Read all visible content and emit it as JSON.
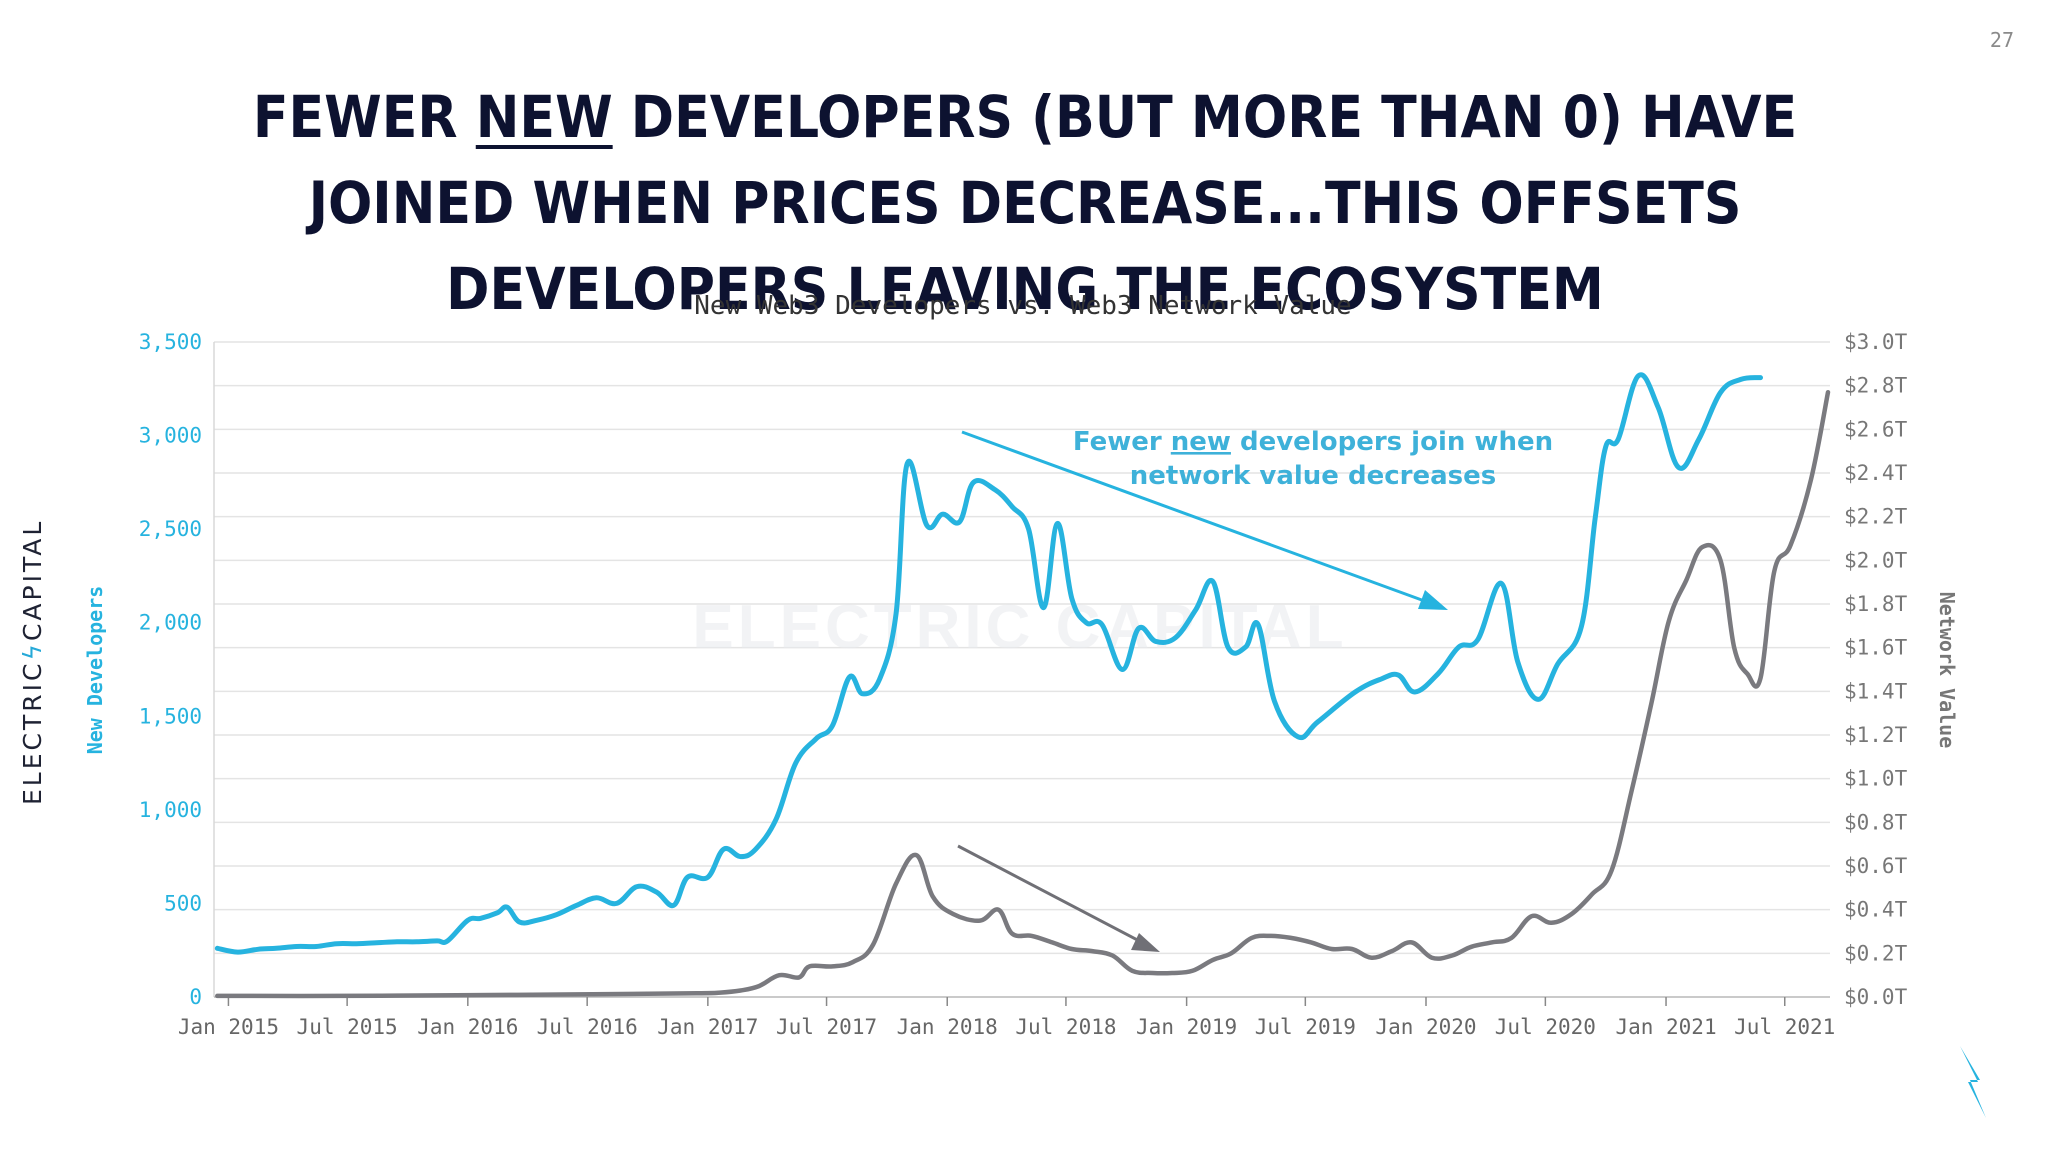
{
  "page_number": "27",
  "brand_label": "ELECTRIC",
  "brand_label_2": "CAPITAL",
  "watermark": "ELECTRIC CAPITAL",
  "title_parts": {
    "before": "Fewer ",
    "underlined": "new",
    "after": " developers (but more than 0) have joined when prices decrease...this offsets developers leaving the ecosystem"
  },
  "colors": {
    "developers": "#26b3df",
    "network_value": "#7a7a7f",
    "annotation_text": "#3eb1d9",
    "arrow_blue": "#26b3df",
    "arrow_gray": "#707076",
    "grid": "#e4e4e4",
    "title": "#0d1230"
  },
  "annotation": {
    "line1_before": "Fewer ",
    "line1_underlined": "new",
    "line1_after": " developers join when",
    "line2": "network value decreases"
  },
  "chart_data": {
    "type": "line",
    "title": "New Web3 Developers vs. Web3 Network Value",
    "ylabel": "New Developers",
    "y2label": "Network Value",
    "ylim": [
      0,
      3500
    ],
    "y2lim": [
      0,
      3.0
    ],
    "grid": true,
    "y_ticks": [
      "0",
      "500",
      "1,000",
      "1,500",
      "2,000",
      "2,500",
      "3,000",
      "3,500"
    ],
    "y2_ticks": [
      "$0.0T",
      "$0.2T",
      "$0.4T",
      "$0.6T",
      "$0.8T",
      "$1.0T",
      "$1.2T",
      "$1.4T",
      "$1.6T",
      "$1.8T",
      "$2.0T",
      "$2.2T",
      "$2.4T",
      "$2.6T",
      "$2.8T",
      "$3.0T"
    ],
    "x_ticks": [
      "Jan 2015",
      "Jul 2015",
      "Jan 2016",
      "Jul 2016",
      "Jan 2017",
      "Jul 2017",
      "Jan 2018",
      "Jul 2018",
      "Jan 2019",
      "Jul 2019",
      "Jan 2020",
      "Jul 2020",
      "Jan 2021",
      "Jul 2021"
    ],
    "x_tick_dates": [
      "2015-01",
      "2015-07",
      "2016-01",
      "2016-07",
      "2017-01",
      "2017-07",
      "2018-01",
      "2018-07",
      "2019-01",
      "2019-07",
      "2020-01",
      "2020-07",
      "2021-01",
      "2021-07"
    ],
    "series": [
      {
        "name": "New Developers",
        "axis": "left",
        "points": [
          [
            "2014-12-15",
            260
          ],
          [
            "2015-01-15",
            240
          ],
          [
            "2015-02-15",
            255
          ],
          [
            "2015-03-15",
            260
          ],
          [
            "2015-04-15",
            270
          ],
          [
            "2015-05-15",
            270
          ],
          [
            "2015-06-15",
            285
          ],
          [
            "2015-07-15",
            285
          ],
          [
            "2015-08-15",
            290
          ],
          [
            "2015-09-15",
            295
          ],
          [
            "2015-10-15",
            295
          ],
          [
            "2015-11-15",
            300
          ],
          [
            "2015-12-01",
            300
          ],
          [
            "2016-01-01",
            410
          ],
          [
            "2016-01-20",
            420
          ],
          [
            "2016-02-15",
            450
          ],
          [
            "2016-03-01",
            480
          ],
          [
            "2016-03-20",
            400
          ],
          [
            "2016-04-15",
            410
          ],
          [
            "2016-05-15",
            440
          ],
          [
            "2016-06-15",
            490
          ],
          [
            "2016-07-15",
            530
          ],
          [
            "2016-08-15",
            500
          ],
          [
            "2016-09-15",
            590
          ],
          [
            "2016-10-15",
            560
          ],
          [
            "2016-11-10",
            490
          ],
          [
            "2016-12-01",
            640
          ],
          [
            "2017-01-01",
            640
          ],
          [
            "2017-01-25",
            790
          ],
          [
            "2017-02-20",
            750
          ],
          [
            "2017-03-15",
            790
          ],
          [
            "2017-04-15",
            950
          ],
          [
            "2017-05-15",
            1250
          ],
          [
            "2017-06-15",
            1380
          ],
          [
            "2017-07-10",
            1450
          ],
          [
            "2017-08-05",
            1710
          ],
          [
            "2017-08-25",
            1620
          ],
          [
            "2017-09-20",
            1700
          ],
          [
            "2017-10-15",
            2050
          ],
          [
            "2017-11-01",
            2850
          ],
          [
            "2017-12-01",
            2520
          ],
          [
            "2017-12-25",
            2580
          ],
          [
            "2018-01-20",
            2540
          ],
          [
            "2018-02-10",
            2750
          ],
          [
            "2018-03-15",
            2710
          ],
          [
            "2018-04-10",
            2620
          ],
          [
            "2018-05-05",
            2500
          ],
          [
            "2018-05-28",
            2080
          ],
          [
            "2018-06-18",
            2530
          ],
          [
            "2018-07-10",
            2130
          ],
          [
            "2018-08-01",
            2000
          ],
          [
            "2018-08-25",
            1990
          ],
          [
            "2018-09-25",
            1750
          ],
          [
            "2018-10-20",
            1970
          ],
          [
            "2018-11-15",
            1900
          ],
          [
            "2018-12-15",
            1920
          ],
          [
            "2019-01-15",
            2070
          ],
          [
            "2019-02-10",
            2220
          ],
          [
            "2019-03-05",
            1870
          ],
          [
            "2019-04-01",
            1870
          ],
          [
            "2019-04-20",
            1990
          ],
          [
            "2019-05-15",
            1580
          ],
          [
            "2019-06-20",
            1390
          ],
          [
            "2019-07-20",
            1470
          ],
          [
            "2019-09-15",
            1630
          ],
          [
            "2019-10-25",
            1700
          ],
          [
            "2019-11-20",
            1720
          ],
          [
            "2019-12-15",
            1630
          ],
          [
            "2020-01-20",
            1730
          ],
          [
            "2020-02-20",
            1870
          ],
          [
            "2020-03-20",
            1910
          ],
          [
            "2020-04-25",
            2210
          ],
          [
            "2020-05-20",
            1790
          ],
          [
            "2020-06-20",
            1590
          ],
          [
            "2020-07-20",
            1780
          ],
          [
            "2020-08-25",
            1980
          ],
          [
            "2020-09-15",
            2560
          ],
          [
            "2020-10-01",
            2940
          ],
          [
            "2020-10-20",
            2980
          ],
          [
            "2020-11-20",
            3320
          ],
          [
            "2020-12-20",
            3150
          ],
          [
            "2021-01-20",
            2830
          ],
          [
            "2021-02-20",
            2980
          ],
          [
            "2021-03-25",
            3230
          ],
          [
            "2021-04-25",
            3300
          ],
          [
            "2021-05-25",
            3310
          ]
        ]
      },
      {
        "name": "Network Value",
        "axis": "right",
        "points": [
          [
            "2014-12-15",
            0.005
          ],
          [
            "2015-06-15",
            0.005
          ],
          [
            "2015-12-15",
            0.008
          ],
          [
            "2016-06-15",
            0.012
          ],
          [
            "2016-12-15",
            0.017
          ],
          [
            "2017-01-20",
            0.02
          ],
          [
            "2017-02-20",
            0.03
          ],
          [
            "2017-03-20",
            0.05
          ],
          [
            "2017-04-20",
            0.1
          ],
          [
            "2017-05-20",
            0.09
          ],
          [
            "2017-06-05",
            0.14
          ],
          [
            "2017-07-10",
            0.14
          ],
          [
            "2017-08-10",
            0.16
          ],
          [
            "2017-09-10",
            0.24
          ],
          [
            "2017-10-15",
            0.52
          ],
          [
            "2017-11-15",
            0.65
          ],
          [
            "2017-12-10",
            0.46
          ],
          [
            "2018-01-10",
            0.38
          ],
          [
            "2018-02-20",
            0.35
          ],
          [
            "2018-03-20",
            0.4
          ],
          [
            "2018-04-10",
            0.29
          ],
          [
            "2018-05-10",
            0.28
          ],
          [
            "2018-06-10",
            0.25
          ],
          [
            "2018-07-10",
            0.22
          ],
          [
            "2018-08-10",
            0.21
          ],
          [
            "2018-09-10",
            0.19
          ],
          [
            "2018-10-10",
            0.12
          ],
          [
            "2018-11-10",
            0.11
          ],
          [
            "2018-12-10",
            0.11
          ],
          [
            "2019-01-10",
            0.12
          ],
          [
            "2019-02-10",
            0.17
          ],
          [
            "2019-03-10",
            0.2
          ],
          [
            "2019-04-10",
            0.27
          ],
          [
            "2019-05-10",
            0.28
          ],
          [
            "2019-06-10",
            0.27
          ],
          [
            "2019-07-10",
            0.25
          ],
          [
            "2019-08-10",
            0.22
          ],
          [
            "2019-09-10",
            0.22
          ],
          [
            "2019-10-10",
            0.18
          ],
          [
            "2019-11-10",
            0.21
          ],
          [
            "2019-12-10",
            0.25
          ],
          [
            "2020-01-10",
            0.18
          ],
          [
            "2020-02-10",
            0.19
          ],
          [
            "2020-03-10",
            0.23
          ],
          [
            "2020-04-10",
            0.25
          ],
          [
            "2020-05-10",
            0.27
          ],
          [
            "2020-06-10",
            0.37
          ],
          [
            "2020-07-10",
            0.34
          ],
          [
            "2020-08-10",
            0.38
          ],
          [
            "2020-09-10",
            0.47
          ],
          [
            "2020-10-10",
            0.58
          ],
          [
            "2020-11-10",
            0.95
          ],
          [
            "2020-12-10",
            1.35
          ],
          [
            "2021-01-05",
            1.72
          ],
          [
            "2021-02-01",
            1.91
          ],
          [
            "2021-02-25",
            2.06
          ],
          [
            "2021-03-25",
            2.0
          ],
          [
            "2021-04-15",
            1.6
          ],
          [
            "2021-05-05",
            1.48
          ],
          [
            "2021-05-25",
            1.46
          ],
          [
            "2021-06-15",
            1.95
          ],
          [
            "2021-07-10",
            2.07
          ],
          [
            "2021-08-10",
            2.37
          ],
          [
            "2021-09-05",
            2.77
          ]
        ]
      }
    ]
  }
}
